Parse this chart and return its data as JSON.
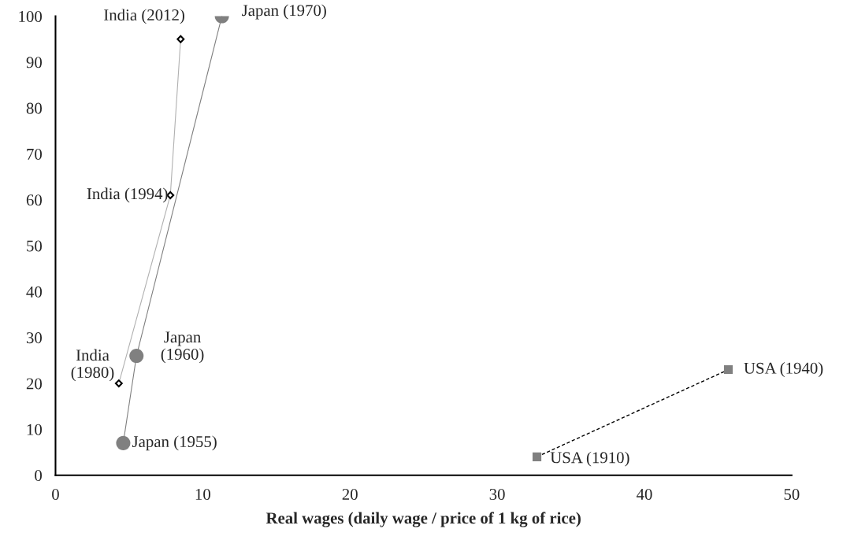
{
  "chart_data": {
    "type": "line",
    "xlabel": "Real wages (daily wage / price of 1 kg of rice)",
    "series": [
      {
        "color": "#000000",
        "marker": "diamond",
        "line_style": "solid",
        "x": [
          4.3,
          7.8,
          8.5
        ],
        "values": [
          20,
          61,
          95
        ]
      },
      {
        "color": "#808080",
        "marker": "circle",
        "line_style": "solid",
        "x": [
          4.6,
          5.5,
          11.3
        ],
        "values": [
          7,
          26,
          100
        ]
      },
      {
        "color": "#808080",
        "marker": "square",
        "line_style": "dashed",
        "x": [
          32.7,
          45.7
        ],
        "values": [
          4,
          23
        ]
      }
    ],
    "xlim": [
      0,
      50
    ],
    "xticks": [
      0,
      10,
      20,
      30,
      40,
      50
    ],
    "ylim": [
      0,
      100
    ],
    "yticks": [
      0,
      10,
      20,
      30,
      40,
      50,
      60,
      70,
      80,
      90,
      100
    ],
    "grid": false,
    "legend": false,
    "annotations": [
      {
        "text": "India\n(1980)",
        "x": 4.3,
        "y": 20
      },
      {
        "text": "India (1994)",
        "x": 7.8,
        "y": 61
      },
      {
        "text": "India (2012)",
        "x": 8.5,
        "y": 95
      },
      {
        "text": "Japan (1955)",
        "x": 4.6,
        "y": 7
      },
      {
        "text": "Japan\n(1960)",
        "x": 5.5,
        "y": 26
      },
      {
        "text": "Japan (1970)",
        "x": 11.3,
        "y": 100
      },
      {
        "text": "USA (1910)",
        "x": 32.7,
        "y": 4
      },
      {
        "text": "USA (1940)",
        "x": 45.7,
        "y": 23
      }
    ]
  }
}
